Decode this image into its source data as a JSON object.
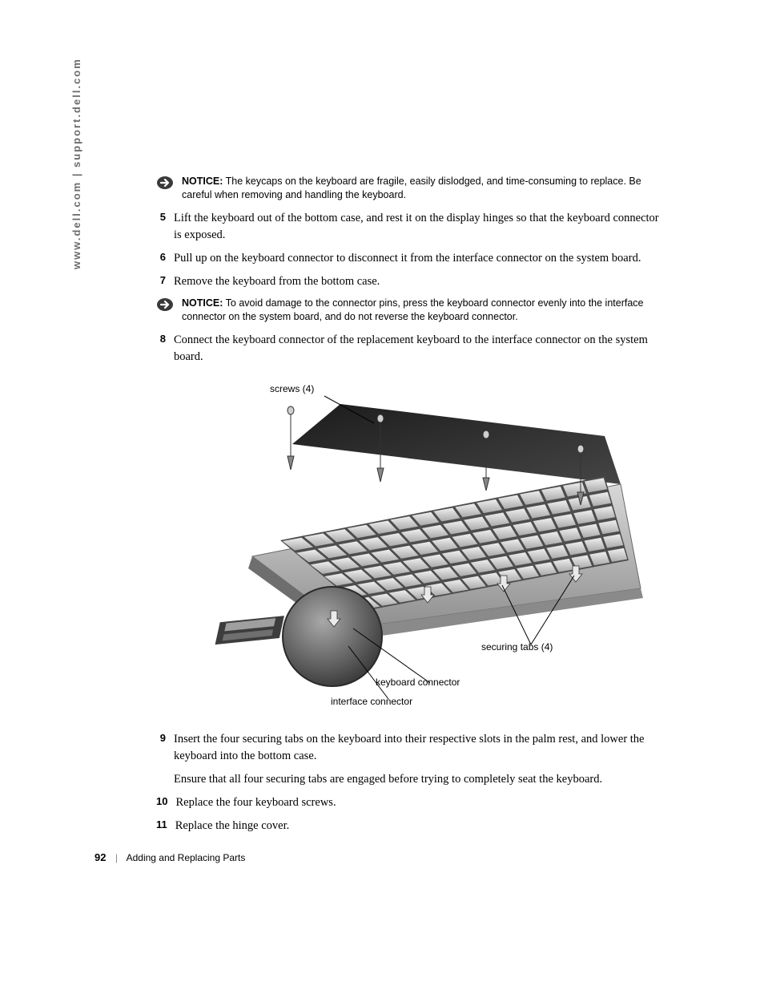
{
  "side_url": "www.dell.com | support.dell.com",
  "notice1": {
    "label": "NOTICE:",
    "text": "The keycaps on the keyboard are fragile, easily dislodged, and time-consuming to replace. Be careful when removing and handling the keyboard."
  },
  "notice2": {
    "label": "NOTICE:",
    "text": "To avoid damage to the connector pins, press the keyboard connector evenly into the interface connector on the system board, and do not reverse the keyboard connector."
  },
  "steps": {
    "s5": {
      "num": "5",
      "text": "Lift the keyboard out of the bottom case, and rest it on the display hinges so that the keyboard connector is exposed."
    },
    "s6": {
      "num": "6",
      "text": "Pull up on the keyboard connector to disconnect it from the interface connector on the system board."
    },
    "s7": {
      "num": "7",
      "text": "Remove the keyboard from the bottom case."
    },
    "s8": {
      "num": "8",
      "text": "Connect the keyboard connector of the replacement keyboard to the interface connector on the system board."
    },
    "s9": {
      "num": "9",
      "text": "Insert the four securing tabs on the keyboard into their respective slots in the palm rest, and lower the keyboard into the bottom case.",
      "extra": "Ensure that all four securing tabs are engaged before trying to completely seat the keyboard."
    },
    "s10": {
      "num": "10",
      "text": "Replace the four keyboard screws."
    },
    "s11": {
      "num": "11",
      "text": "Replace the hinge cover."
    }
  },
  "figure": {
    "callouts": {
      "screws": "screws (4)",
      "securing_tabs": "securing tabs (4)",
      "keyboard_connector": "keyboard connector",
      "interface_connector": "interface connector"
    },
    "colors": {
      "body_light": "#cfcfcf",
      "body_mid": "#9a9a9a",
      "body_dark": "#5a5a5a",
      "key_light": "#e4e4e4",
      "key_shadow": "#7a7a7a",
      "screen_dark": "#2e2e2e",
      "callout_line": "#000000",
      "inset_ring": "#3e3e3e",
      "inset_fill": "#6f6f6f"
    }
  },
  "footer": {
    "page_num": "92",
    "divider": "|",
    "chapter": "Adding and Replacing Parts"
  },
  "typography": {
    "notice_font": "Arial",
    "notice_size_pt": 9.5,
    "step_num_font": "Arial",
    "step_num_weight": 700,
    "step_body_font": "Georgia",
    "step_body_size_pt": 11,
    "callout_font": "Arial",
    "callout_size_pt": 9
  }
}
